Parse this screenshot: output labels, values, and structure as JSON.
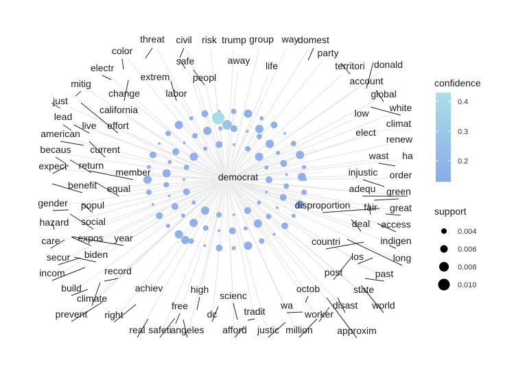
{
  "chart_data": {
    "type": "network",
    "center_node": "democrat",
    "node_color": "#8fb0ea",
    "highlight_color": "#a8dde6",
    "edge_color": "#e4e4e4",
    "label_line_color": "#222222",
    "legend": {
      "color": {
        "title": "confidence",
        "ticks": [
          "0.4",
          "0.3",
          "0.2"
        ],
        "range": [
          0.13,
          0.43
        ],
        "low_color": "#8aaaea",
        "high_color": "#acdde8"
      },
      "size": {
        "title": "support",
        "ticks": [
          "0.004",
          "0.006",
          "0.008",
          "0.010"
        ]
      }
    },
    "nodes": [
      "threat",
      "civil",
      "risk",
      "trump",
      "group",
      "way",
      "domest",
      "safe",
      "away",
      "life",
      "party",
      "color",
      "extrem",
      "peopl",
      "territori",
      "donald",
      "electr",
      "account",
      "mitig",
      "change",
      "labor",
      "global",
      "just",
      "white",
      "california",
      "low",
      "lead",
      "climat",
      "live",
      "effort",
      "elect",
      "american",
      "renew",
      "becaus",
      "current",
      "wast",
      "ha",
      "expect",
      "return",
      "member",
      "injustic",
      "order",
      "benefit",
      "equal",
      "adequ",
      "green",
      "gender",
      "popul",
      "disproportion",
      "fair",
      "great",
      "hazard",
      "social",
      "deal",
      "access",
      "care",
      "expos",
      "year",
      "countri",
      "indigen",
      "secur",
      "biden",
      "long",
      "los",
      "incom",
      "record",
      "post",
      "past",
      "build",
      "achiev",
      "state",
      "climate",
      "high",
      "octob",
      "scienc",
      "world",
      "prevent",
      "right",
      "free",
      "wa",
      "disast",
      "tradit",
      "dc",
      "worker",
      "real",
      "safeti",
      "angeles",
      "afford",
      "justic",
      "million",
      "approxim"
    ]
  }
}
